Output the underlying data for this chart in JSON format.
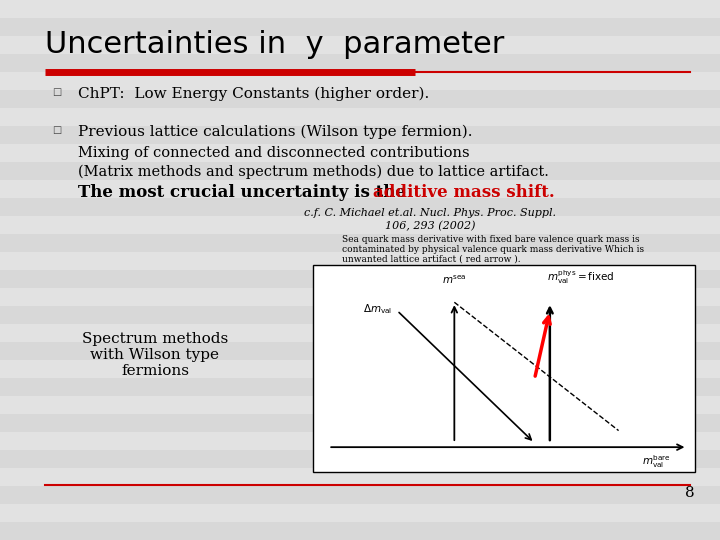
{
  "title": "Uncertainties in  y  parameter",
  "title_fontsize": 22,
  "title_color": "#000000",
  "red_bar_color": "#cc0000",
  "bullet1": "Ch​PT:  Low Energy Constants (higher order).",
  "bullet2_line1": "Previous lattice calculations (Wilson type fermion).",
  "bullet2_line2": "Mixing of connected and disconnected contributions",
  "bullet2_line3": "(Matrix methods and spectrum methods) due to lattice artifact.",
  "bullet2_line4_black": "The most crucial uncertainty is the ",
  "bullet2_line4_red": "additive mass shift.",
  "ref_line1": "c.f. C. Michael et.al. Nucl. Phys. Proc. Suppl.",
  "ref_line2": "106, 293 (2002)",
  "small_text_line1": "Sea quark mass derivative with fixed bare valence quark mass is",
  "small_text_line2": "contaminated by physical valence quark mass derivative Which is",
  "small_text_line3": "unwanted lattice artifact ( red arrow ).",
  "left_label": "Spectrum methods\nwith Wilson type\nfermions",
  "page_num": "8",
  "stripe_colors": [
    "#d8d8d8",
    "#e2e2e2"
  ],
  "box_bg": "#ffffff",
  "bullet_char": "□"
}
